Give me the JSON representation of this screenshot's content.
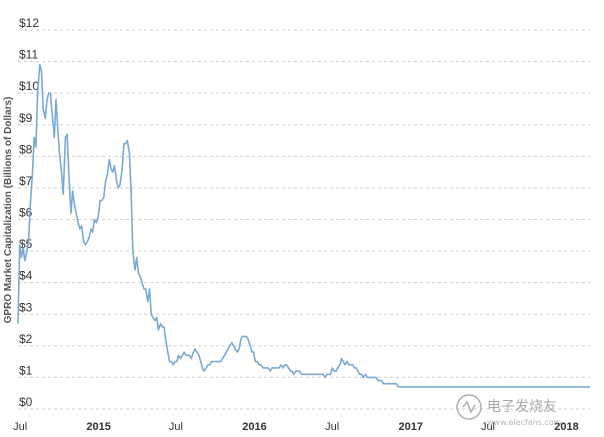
{
  "chart_data": {
    "type": "line",
    "title": "",
    "ylabel": "GPRO Market Capitalization (Billions of Dollars)",
    "xlabel": "",
    "ylim": [
      0,
      12
    ],
    "y_ticks": [
      0,
      1,
      2,
      3,
      4,
      5,
      6,
      7,
      8,
      9,
      10,
      11,
      12
    ],
    "y_tick_labels": [
      "$0",
      "$1",
      "$2",
      "$3",
      "$4",
      "$5",
      "$6",
      "$7",
      "$8",
      "$9",
      "$10",
      "$11",
      "$12"
    ],
    "x_range": [
      "2014-06-26",
      "2018-02-25"
    ],
    "x_ticks": [
      {
        "label": "Jul",
        "date": "2014-07-01",
        "major": false
      },
      {
        "label": "2015",
        "date": "2015-01-01",
        "major": true
      },
      {
        "label": "Jul",
        "date": "2015-07-01",
        "major": false
      },
      {
        "label": "2016",
        "date": "2016-01-01",
        "major": true
      },
      {
        "label": "Jul",
        "date": "2016-07-01",
        "major": false
      },
      {
        "label": "2017",
        "date": "2017-01-01",
        "major": true
      },
      {
        "label": "Jul",
        "date": "2017-07-01",
        "major": false
      },
      {
        "label": "2018",
        "date": "2018-01-01",
        "major": true
      }
    ],
    "grid": "horizontal dashed",
    "legend": "none",
    "line_color": "#7aaad4",
    "series": [
      {
        "x": [
          "2014-06-26",
          "2014-06-30",
          "2014-07-04",
          "2014-07-08",
          "2014-07-12",
          "2014-07-17",
          "2014-07-21",
          "2014-07-25",
          "2014-07-30",
          "2014-08-03",
          "2014-08-07",
          "2014-08-11",
          "2014-08-16",
          "2014-08-20",
          "2014-08-24",
          "2014-08-29",
          "2014-09-02",
          "2014-09-06",
          "2014-09-10",
          "2014-09-15",
          "2014-09-19",
          "2014-09-23",
          "2014-09-28",
          "2014-10-02",
          "2014-10-06",
          "2014-10-10",
          "2014-10-15",
          "2014-10-19",
          "2014-10-23",
          "2014-10-28",
          "2014-11-01",
          "2014-11-05",
          "2014-11-09",
          "2014-11-14",
          "2014-11-18",
          "2014-11-22",
          "2014-11-27",
          "2014-12-01",
          "2014-12-05",
          "2014-12-09",
          "2014-12-14",
          "2014-12-18",
          "2014-12-22",
          "2014-12-27",
          "2014-12-31",
          "2015-01-04",
          "2015-01-08",
          "2015-01-13",
          "2015-01-17",
          "2015-01-21",
          "2015-01-26",
          "2015-01-30",
          "2015-02-03",
          "2015-02-07",
          "2015-02-12",
          "2015-02-16",
          "2015-02-20",
          "2015-02-25",
          "2015-03-01",
          "2015-03-05",
          "2015-03-09",
          "2015-03-14",
          "2015-03-18",
          "2015-03-22",
          "2015-03-27",
          "2015-03-31",
          "2015-04-04",
          "2015-04-08",
          "2015-04-13",
          "2015-04-17",
          "2015-04-21",
          "2015-04-26",
          "2015-04-30",
          "2015-05-04",
          "2015-05-08",
          "2015-05-13",
          "2015-05-17",
          "2015-05-21",
          "2015-05-26",
          "2015-05-30",
          "2015-06-03",
          "2015-06-07",
          "2015-06-12",
          "2015-06-16",
          "2015-06-20",
          "2015-06-25",
          "2015-06-29",
          "2015-07-03",
          "2015-07-07",
          "2015-07-12",
          "2015-07-16",
          "2015-07-20",
          "2015-07-25",
          "2015-07-29",
          "2015-08-02",
          "2015-08-06",
          "2015-08-11",
          "2015-08-15",
          "2015-08-19",
          "2015-08-24",
          "2015-08-28",
          "2015-09-01",
          "2015-09-05",
          "2015-09-10",
          "2015-09-14",
          "2015-09-18",
          "2015-09-23",
          "2015-09-27",
          "2015-10-01",
          "2015-10-05",
          "2015-10-10",
          "2015-10-14",
          "2015-10-18",
          "2015-10-23",
          "2015-10-27",
          "2015-10-31",
          "2015-11-04",
          "2015-11-09",
          "2015-11-13",
          "2015-11-17",
          "2015-11-22",
          "2015-11-26",
          "2015-11-30",
          "2015-12-04",
          "2015-12-09",
          "2015-12-13",
          "2015-12-17",
          "2015-12-22",
          "2015-12-26",
          "2015-12-30",
          "2016-01-03",
          "2016-01-08",
          "2016-01-12",
          "2016-01-16",
          "2016-01-21",
          "2016-01-25",
          "2016-01-29",
          "2016-02-02",
          "2016-02-07",
          "2016-02-11",
          "2016-02-15",
          "2016-02-20",
          "2016-02-24",
          "2016-02-28",
          "2016-03-03",
          "2016-03-08",
          "2016-03-12",
          "2016-03-16",
          "2016-03-21",
          "2016-03-25",
          "2016-03-29",
          "2016-04-02",
          "2016-04-07",
          "2016-04-11",
          "2016-04-15",
          "2016-04-20",
          "2016-04-24",
          "2016-04-28",
          "2016-05-02",
          "2016-05-07",
          "2016-05-11",
          "2016-05-15",
          "2016-05-20",
          "2016-05-24",
          "2016-05-28",
          "2016-06-01",
          "2016-06-06",
          "2016-06-10",
          "2016-06-14",
          "2016-06-19",
          "2016-06-23",
          "2016-06-27",
          "2016-07-01",
          "2016-07-06",
          "2016-07-10",
          "2016-07-14",
          "2016-07-19",
          "2016-07-23",
          "2016-07-27",
          "2016-07-31",
          "2016-08-05",
          "2016-08-09",
          "2016-08-13",
          "2016-08-18",
          "2016-08-22",
          "2016-08-26",
          "2016-08-30",
          "2016-09-04",
          "2016-09-08",
          "2016-09-12",
          "2016-09-17",
          "2016-09-21",
          "2016-09-25",
          "2016-09-29",
          "2016-10-04",
          "2016-10-08",
          "2016-10-12",
          "2016-10-17",
          "2016-10-21",
          "2016-10-25",
          "2016-10-29",
          "2016-11-03",
          "2016-11-07",
          "2016-11-11",
          "2016-11-16",
          "2016-11-20",
          "2016-11-24",
          "2016-11-28",
          "2016-12-03",
          "2016-12-07",
          "2016-12-11",
          "2016-12-16",
          "2016-12-20",
          "2016-12-24",
          "2016-12-28",
          "2017-01-02",
          "2017-01-06",
          "2017-01-10",
          "2017-01-15",
          "2017-01-19",
          "2017-01-23",
          "2017-01-27",
          "2017-02-01",
          "2017-02-05",
          "2017-02-09",
          "2017-02-14",
          "2017-02-18",
          "2017-02-22",
          "2017-02-26",
          "2017-03-03",
          "2017-03-07",
          "2017-03-11",
          "2017-03-16",
          "2017-03-20",
          "2017-03-24",
          "2017-03-28",
          "2017-04-02",
          "2017-04-06",
          "2017-04-10",
          "2017-04-15",
          "2017-04-19",
          "2017-04-23",
          "2017-04-27",
          "2017-05-02",
          "2017-05-06",
          "2017-05-10",
          "2017-05-15",
          "2017-05-19",
          "2017-05-23",
          "2017-05-27",
          "2017-06-01",
          "2017-06-05",
          "2017-06-09",
          "2017-06-14",
          "2017-06-18",
          "2017-06-22",
          "2017-06-26",
          "2017-07-01",
          "2017-07-05",
          "2017-07-09",
          "2017-07-14",
          "2017-07-18",
          "2017-07-22",
          "2017-07-26",
          "2017-07-31",
          "2017-08-04",
          "2017-08-08",
          "2017-08-13",
          "2017-08-17",
          "2017-08-21",
          "2017-08-25",
          "2017-08-30",
          "2017-09-03",
          "2017-09-07",
          "2017-09-12",
          "2017-09-16",
          "2017-09-20",
          "2017-09-24",
          "2017-09-29",
          "2017-10-03",
          "2017-10-07",
          "2017-10-12",
          "2017-10-16",
          "2017-10-20",
          "2017-10-24",
          "2017-10-29",
          "2017-11-02",
          "2017-11-06",
          "2017-11-11",
          "2017-11-15",
          "2017-11-19",
          "2017-11-23",
          "2017-11-28",
          "2017-12-02",
          "2017-12-06",
          "2017-12-11",
          "2017-12-15",
          "2017-12-19",
          "2017-12-23",
          "2017-12-28",
          "2018-01-01",
          "2018-01-05",
          "2018-01-10",
          "2018-01-14",
          "2018-01-18",
          "2018-01-22",
          "2018-01-27",
          "2018-01-31",
          "2018-02-04",
          "2018-02-09",
          "2018-02-13",
          "2018-02-17",
          "2018-02-21",
          "2018-02-25"
        ],
        "y": [
          2.7,
          5.2,
          4.8,
          5.1,
          4.7,
          5.0,
          5.4,
          6.5,
          7.5,
          8.6,
          8.3,
          10.0,
          10.9,
          10.7,
          9.5,
          9.2,
          9.8,
          10.0,
          10.0,
          9.2,
          8.6,
          9.8,
          8.7,
          8.0,
          7.5,
          6.8,
          8.6,
          8.7,
          7.5,
          6.2,
          6.9,
          6.5,
          6.2,
          5.9,
          5.7,
          5.8,
          5.3,
          5.2,
          5.3,
          5.4,
          5.7,
          5.6,
          6.0,
          5.9,
          6.1,
          6.6,
          6.6,
          6.7,
          7.2,
          7.4,
          7.9,
          7.6,
          7.5,
          7.7,
          7.2,
          7.0,
          7.1,
          7.6,
          8.4,
          8.4,
          8.5,
          8.1,
          6.9,
          5.0,
          4.4,
          4.8,
          4.3,
          4.2,
          4.0,
          3.8,
          3.8,
          3.4,
          3.8,
          3.0,
          2.9,
          2.8,
          2.9,
          2.5,
          2.7,
          2.6,
          2.6,
          2.2,
          1.8,
          1.5,
          1.5,
          1.4,
          1.5,
          1.5,
          1.7,
          1.6,
          1.7,
          1.8,
          1.7,
          1.7,
          1.7,
          1.6,
          1.8,
          1.9,
          1.8,
          1.7,
          1.5,
          1.3,
          1.2,
          1.3,
          1.4,
          1.4,
          1.5,
          1.5,
          1.5,
          1.5,
          1.5,
          1.5,
          1.6,
          1.7,
          1.8,
          1.9,
          2.0,
          2.1,
          2.0,
          1.9,
          1.8,
          1.9,
          2.2,
          2.3,
          2.3,
          2.3,
          2.2,
          2.0,
          1.8,
          1.8,
          1.5,
          1.5,
          1.4,
          1.4,
          1.3,
          1.3,
          1.3,
          1.3,
          1.2,
          1.3,
          1.3,
          1.3,
          1.3,
          1.3,
          1.4,
          1.3,
          1.4,
          1.4,
          1.3,
          1.2,
          1.2,
          1.1,
          1.2,
          1.2,
          1.2,
          1.1,
          1.1,
          1.1,
          1.1,
          1.1,
          1.1,
          1.1,
          1.1,
          1.1,
          1.1,
          1.1,
          1.1,
          1.1,
          1.0,
          1.1,
          1.1,
          1.1,
          1.3,
          1.2,
          1.2,
          1.3,
          1.4,
          1.6,
          1.5,
          1.4,
          1.5,
          1.4,
          1.4,
          1.4,
          1.3,
          1.3,
          1.2,
          1.1,
          1.1,
          1.0,
          1.1,
          1.0,
          1.0,
          1.0,
          1.0,
          1.0,
          1.0,
          0.9,
          0.9,
          0.9,
          0.8,
          0.8,
          0.8,
          0.8,
          0.8,
          0.8,
          0.8,
          0.8,
          0.7,
          0.7,
          0.7,
          0.7,
          0.7,
          0.7,
          0.7,
          0.7,
          0.7,
          0.7,
          0.7,
          0.7,
          0.7,
          0.7,
          0.7,
          0.7,
          0.7,
          0.7,
          0.7,
          0.7,
          0.7,
          0.7,
          0.7,
          0.7,
          0.7,
          0.7,
          0.7,
          0.7,
          0.7,
          0.7,
          0.7,
          0.7,
          0.7,
          0.7,
          0.7,
          0.7,
          0.7,
          0.7,
          0.7,
          0.7,
          0.7,
          0.7,
          0.7,
          0.7,
          0.7,
          0.7,
          0.7,
          0.7,
          0.7,
          0.7,
          0.7,
          0.7,
          0.7,
          0.7,
          0.7,
          0.7,
          0.7,
          0.7,
          0.7,
          0.7,
          0.7,
          0.7,
          0.7,
          0.7,
          0.7,
          0.7,
          0.7,
          0.7,
          0.7,
          0.7,
          0.7,
          0.7,
          0.7,
          0.7,
          0.7,
          0.7,
          0.7,
          0.7,
          0.7,
          0.7,
          0.7,
          0.7,
          0.7,
          0.7,
          0.7,
          0.7,
          0.7,
          0.7,
          0.7,
          0.7,
          0.7,
          0.7,
          0.7,
          0.7,
          0.7,
          0.7,
          0.7,
          0.7,
          0.7,
          0.7,
          0.7,
          0.7,
          0.7,
          0.7,
          0.7,
          0.7
        ]
      }
    ]
  },
  "watermark": {
    "text": "电子发烧友",
    "subtext": "www.elecfans.com",
    "color": "#a8a8a8"
  }
}
